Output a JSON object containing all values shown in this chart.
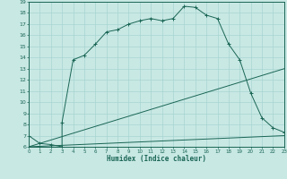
{
  "xlabel": "Humidex (Indice chaleur)",
  "bg_color": "#c8e8e4",
  "grid_color": "#a8d4d0",
  "line_color": "#1a6655",
  "xlim": [
    0,
    23
  ],
  "ylim": [
    6,
    19
  ],
  "xticks": [
    0,
    1,
    2,
    3,
    4,
    5,
    6,
    7,
    8,
    9,
    10,
    11,
    12,
    13,
    14,
    15,
    16,
    17,
    18,
    19,
    20,
    21,
    22,
    23
  ],
  "yticks": [
    6,
    7,
    8,
    9,
    10,
    11,
    12,
    13,
    14,
    15,
    16,
    17,
    18,
    19
  ],
  "curve1_x": [
    0,
    1,
    2,
    3,
    3,
    4,
    5,
    6,
    7,
    8,
    9,
    10,
    11,
    12,
    13,
    14,
    15,
    16,
    17,
    18,
    19,
    20,
    21,
    22,
    23
  ],
  "curve1_y": [
    7.0,
    6.3,
    6.2,
    6.0,
    8.2,
    13.8,
    14.2,
    15.2,
    16.3,
    16.5,
    17.0,
    17.3,
    17.5,
    17.3,
    17.5,
    18.6,
    18.5,
    17.8,
    17.5,
    15.2,
    13.8,
    10.8,
    8.6,
    7.7,
    7.3
  ],
  "curve2_x": [
    0,
    23
  ],
  "curve2_y": [
    6.0,
    13.0
  ],
  "curve3_x": [
    0,
    23
  ],
  "curve3_y": [
    6.0,
    7.0
  ],
  "marker_indices": [
    0,
    1,
    2,
    3,
    4,
    5,
    6,
    7,
    8,
    9,
    10,
    11,
    12,
    13,
    14,
    15,
    16,
    17,
    18,
    19,
    20,
    21,
    22,
    23,
    24
  ],
  "dpi": 100,
  "figsize": [
    3.2,
    2.0
  ]
}
